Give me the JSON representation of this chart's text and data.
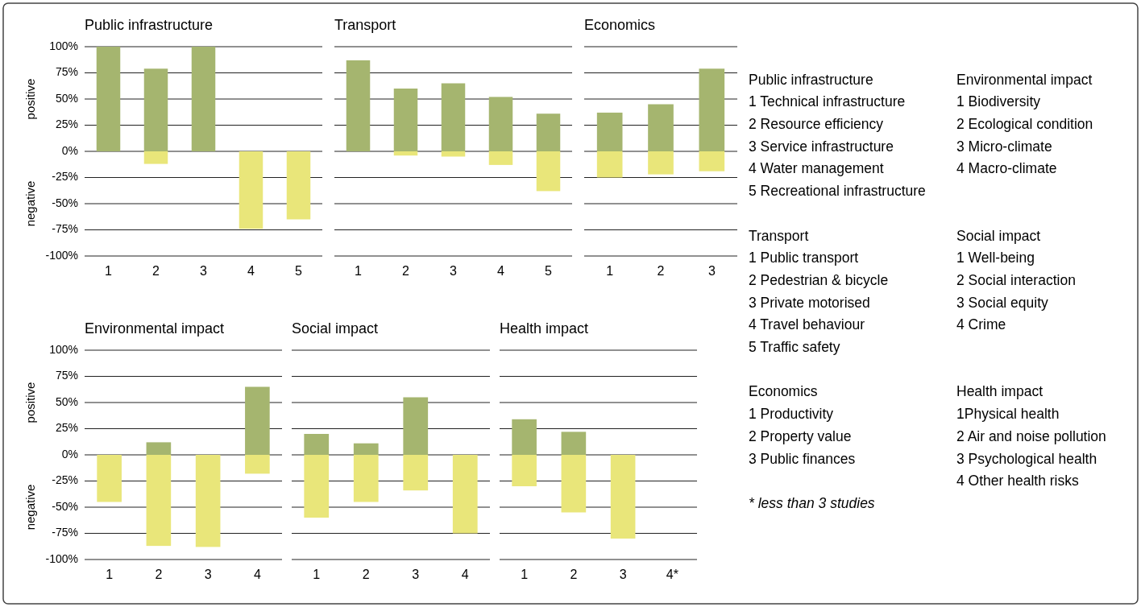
{
  "chart_data": [
    {
      "type": "bar",
      "title": "Public infrastructure",
      "categories": [
        "1",
        "2",
        "3",
        "4",
        "5"
      ],
      "stacked": true,
      "grid": "y",
      "ylim": [
        -100,
        100
      ],
      "yticks": [
        {
          "value": 100,
          "label": "100%"
        },
        {
          "value": 75,
          "label": "75%"
        },
        {
          "value": 50,
          "label": "50%"
        },
        {
          "value": 25,
          "label": "25%"
        },
        {
          "value": 0,
          "label": "0%"
        },
        {
          "value": -25,
          "label": "-25%"
        },
        {
          "value": -50,
          "label": "-50%"
        },
        {
          "value": -75,
          "label": "-75%"
        },
        {
          "value": -100,
          "label": "-100%"
        }
      ],
      "annotations": [
        "positive",
        "negative"
      ],
      "series": [
        {
          "color": "#a5b56f",
          "values": [
            100,
            79,
            100,
            null,
            null
          ]
        },
        {
          "color": "#e9e67a",
          "values": [
            null,
            -12,
            null,
            -74,
            -65
          ]
        }
      ]
    },
    {
      "type": "bar",
      "title": "Transport",
      "categories": [
        "1",
        "2",
        "3",
        "4",
        "5"
      ],
      "stacked": true,
      "grid": "y",
      "tick_labels": "x",
      "ylim": [
        -100,
        100
      ],
      "yticks": [
        100,
        75,
        50,
        25,
        0,
        -25,
        -50,
        -75,
        -100
      ],
      "series": [
        {
          "color": "#a5b56f",
          "values": [
            87,
            60,
            65,
            52,
            36
          ]
        },
        {
          "color": "#e9e67a",
          "values": [
            null,
            -4,
            -5,
            -13,
            -38
          ]
        }
      ]
    },
    {
      "type": "bar",
      "title": "Economics",
      "categories": [
        "1",
        "2",
        "3"
      ],
      "stacked": true,
      "grid": "y",
      "tick_labels": "x",
      "ylim": [
        -100,
        100
      ],
      "yticks": [
        100,
        75,
        50,
        25,
        0,
        -25,
        -50,
        -75,
        -100
      ],
      "series": [
        {
          "color": "#a5b56f",
          "values": [
            37,
            45,
            79
          ]
        },
        {
          "color": "#e9e67a",
          "values": [
            -25,
            -22,
            -19
          ]
        }
      ]
    },
    {
      "type": "bar",
      "title": "Environmental impact",
      "categories": [
        "1",
        "2",
        "3",
        "4"
      ],
      "stacked": true,
      "grid": "y",
      "ylim": [
        -100,
        100
      ],
      "yticks": [
        {
          "value": 100,
          "label": "100%"
        },
        {
          "value": 75,
          "label": "75%"
        },
        {
          "value": 50,
          "label": "50%"
        },
        {
          "value": 25,
          "label": "25%"
        },
        {
          "value": 0,
          "label": "0%"
        },
        {
          "value": -25,
          "label": "-25%"
        },
        {
          "value": -50,
          "label": "-50%"
        },
        {
          "value": -75,
          "label": "-75%"
        },
        {
          "value": -100,
          "label": "-100%"
        }
      ],
      "annotations": [
        "positive",
        "negative"
      ],
      "series": [
        {
          "color": "#a5b56f",
          "values": [
            null,
            12,
            null,
            65
          ]
        },
        {
          "color": "#e9e67a",
          "values": [
            -45,
            -87,
            -88,
            -18
          ]
        }
      ]
    },
    {
      "type": "bar",
      "title": "Social impact",
      "categories": [
        "1",
        "2",
        "3",
        "4"
      ],
      "stacked": true,
      "grid": "y",
      "tick_labels": "x",
      "ylim": [
        -100,
        100
      ],
      "yticks": [
        100,
        75,
        50,
        25,
        0,
        -25,
        -50,
        -75,
        -100
      ],
      "series": [
        {
          "color": "#a5b56f",
          "values": [
            20,
            11,
            55,
            null
          ]
        },
        {
          "color": "#e9e67a",
          "values": [
            -60,
            -45,
            -34,
            -75
          ]
        }
      ]
    },
    {
      "type": "bar",
      "title": "Health impact",
      "categories": [
        "1",
        "2",
        "3",
        "4*"
      ],
      "stacked": true,
      "grid": "y",
      "tick_labels": "x",
      "ylim": [
        -100,
        100
      ],
      "yticks": [
        100,
        75,
        50,
        25,
        0,
        -25,
        -50,
        -75,
        -100
      ],
      "series": [
        {
          "color": "#a5b56f",
          "values": [
            34,
            22,
            null,
            null
          ]
        },
        {
          "color": "#e9e67a",
          "values": [
            -30,
            -55,
            -80,
            null
          ]
        }
      ]
    },
    {
      "type": "other",
      "annotations": [
        "Public infrastructure",
        "1 Technical infrastructure",
        "2 Resource efficiency",
        "3 Service infrastructure",
        "4 Water management",
        "5 Recreational infrastructure",
        "Transport",
        "1 Public transport",
        "2 Pedestrian & bicycle",
        "3 Private motorised",
        "4 Travel behaviour",
        "5 Traffic safety",
        "Economics",
        "1 Productivity",
        "2 Property value",
        "3 Public finances",
        "* less than 3 studies",
        "Environmental impact",
        "1 Biodiversity",
        "2 Ecological condition",
        "3 Micro-climate",
        "4 Macro-climate",
        "Social impact",
        "1 Well-being",
        "2 Social interaction",
        "3 Social equity",
        "4 Crime",
        "Health impact",
        "1Physical health",
        "2 Air and noise pollution",
        "3 Psychological health",
        "4 Other health risks"
      ]
    }
  ]
}
